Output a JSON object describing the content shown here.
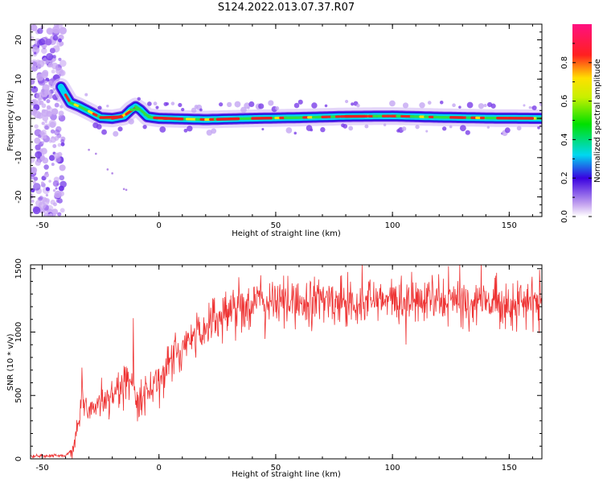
{
  "title": "S124.2022.013.07.37.R07",
  "colors": {
    "snr_line": "#ee3333",
    "axes": "#000000"
  },
  "chart_data": [
    {
      "type": "heatmap",
      "xlabel": "Height of straight line (km)",
      "ylabel": "Frequency (Hz)",
      "xlim": [
        -55,
        164
      ],
      "ylim": [
        -25,
        24
      ],
      "xticks": [
        -50,
        0,
        50,
        100,
        150
      ],
      "yticks": [
        -20,
        -10,
        0,
        10,
        20
      ],
      "colorbar": {
        "label": "Normalized spectral amplitude",
        "ticks": [
          0.0,
          0.2,
          0.4,
          0.6,
          0.8
        ],
        "range": [
          0,
          1
        ]
      },
      "ridge": {
        "x": [
          -42,
          -38,
          -34,
          -30,
          -25,
          -20,
          -15,
          -12,
          -10,
          -8,
          -5,
          0,
          20,
          40,
          60,
          80,
          100,
          120,
          140,
          164
        ],
        "freq": [
          8,
          4,
          3,
          1.8,
          0.2,
          0,
          0.5,
          2.2,
          3,
          2.2,
          0.4,
          0,
          -0.3,
          0,
          0.2,
          0.5,
          0.6,
          0.3,
          0.1,
          0
        ]
      }
    },
    {
      "type": "line",
      "xlabel": "Height of straight line (km)",
      "ylabel": "SNR (10 * v/v)",
      "xlim": [
        -55,
        164
      ],
      "ylim": [
        0,
        1530
      ],
      "xticks": [
        -50,
        0,
        50,
        100,
        150
      ],
      "yticks": [
        0,
        500,
        1000,
        1500
      ],
      "trend": {
        "x": [
          -55,
          -40,
          -37,
          -35,
          -33,
          -30,
          -27,
          -24,
          -20,
          -17,
          -14,
          -11,
          -10,
          -8,
          -5,
          0,
          5,
          10,
          15,
          20,
          25,
          30,
          35,
          40,
          50,
          60,
          80,
          100,
          120,
          140,
          164
        ],
        "y": [
          20,
          25,
          80,
          200,
          480,
          380,
          430,
          450,
          520,
          560,
          600,
          650,
          520,
          480,
          530,
          640,
          760,
          860,
          960,
          1050,
          1120,
          1170,
          1210,
          1230,
          1240,
          1240,
          1250,
          1240,
          1240,
          1235,
          1230
        ]
      },
      "spikes": {
        "x": [
          -33,
          -24.5,
          -11,
          87,
          117,
          124
        ],
        "y": [
          720,
          640,
          1110,
          1530,
          1450,
          1520
        ]
      }
    }
  ]
}
